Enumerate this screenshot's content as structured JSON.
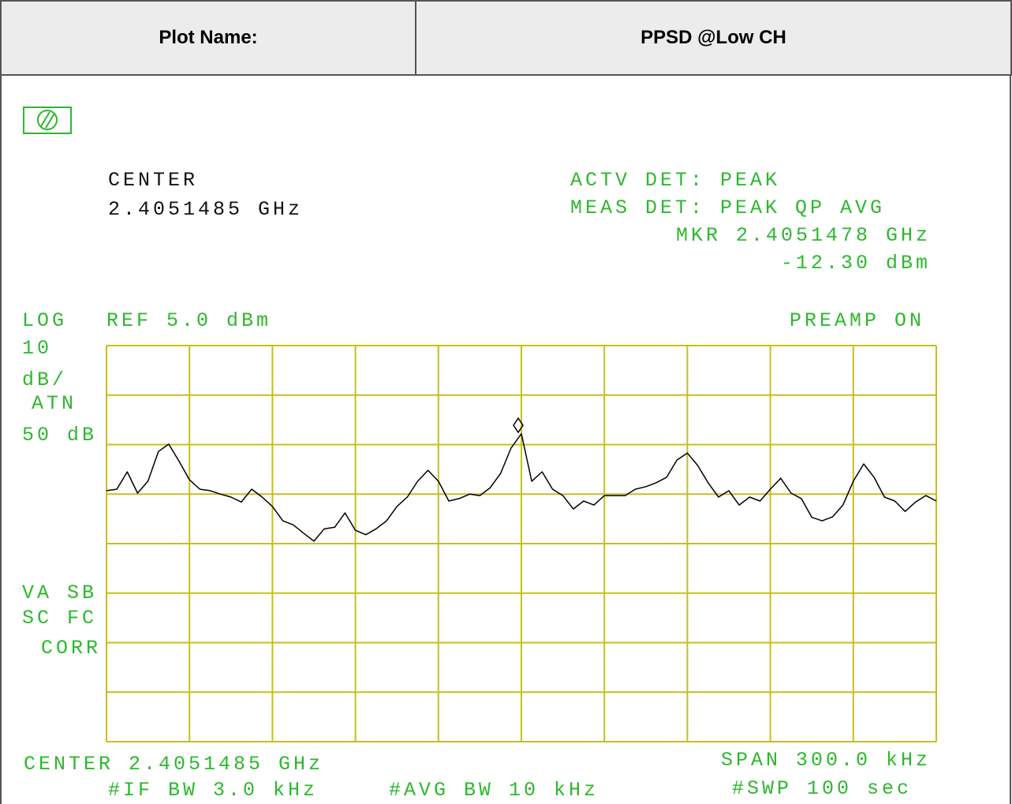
{
  "header": {
    "label": "Plot Name:",
    "value": "PPSD @Low CH"
  },
  "screen": {
    "center_label": "CENTER",
    "center_value": "2.4051485 GHz",
    "actv_det": "ACTV DET: PEAK",
    "meas_det": "MEAS DET: PEAK QP AVG",
    "marker_freq": "MKR 2.4051478 GHz",
    "marker_level": "-12.30 dBm",
    "log": "LOG",
    "ref": "REF 5.0 dBm",
    "preamp": "PREAMP ON",
    "scale_num": "10",
    "scale_unit": "dB/",
    "atn": "ATN",
    "atn_value": "50 dB",
    "va_sb": "VA SB",
    "sc_fc": "SC FC",
    "corr": "CORR",
    "center_footer": "CENTER 2.4051485 GHz",
    "span": "SPAN 300.0 kHz",
    "if_bw": "#IF BW 3.0 kHz",
    "avg_bw": "#AVG BW 10 kHz",
    "sweep": "#SWP 100  sec"
  },
  "chart_data": {
    "type": "line",
    "color": "#000000",
    "grid": true,
    "grid_color": "#c8be1e",
    "ylim": [
      -75,
      5
    ],
    "yticks": [
      5,
      -5,
      -15,
      -25,
      -35,
      -45,
      -55,
      -65,
      -75
    ],
    "values": [
      -24.3,
      -24.0,
      -20.5,
      -24.8,
      -22.4,
      -16.4,
      -14.9,
      -18.4,
      -22.1,
      -24.0,
      -24.3,
      -25.0,
      -25.6,
      -26.6,
      -24.0,
      -25.6,
      -27.5,
      -30.4,
      -31.2,
      -32.9,
      -34.5,
      -32.0,
      -31.7,
      -28.8,
      -32.3,
      -33.2,
      -32.0,
      -30.4,
      -27.5,
      -25.6,
      -22.4,
      -20.2,
      -22.4,
      -26.4,
      -25.9,
      -25.0,
      -25.3,
      -23.7,
      -20.8,
      -15.7,
      -12.8,
      -22.4,
      -20.5,
      -24.0,
      -25.3,
      -28.0,
      -26.4,
      -27.2,
      -25.3,
      -25.3,
      -25.3,
      -24.0,
      -23.5,
      -22.7,
      -21.6,
      -18.1,
      -16.7,
      -19.2,
      -22.7,
      -25.6,
      -24.3,
      -27.2,
      -25.6,
      -26.4,
      -24.0,
      -21.8,
      -24.8,
      -25.9,
      -29.7,
      -30.4,
      -29.6,
      -27.2,
      -22.4,
      -18.9,
      -21.6,
      -25.6,
      -26.4,
      -28.5,
      -26.6,
      -25.3,
      -26.4
    ]
  }
}
